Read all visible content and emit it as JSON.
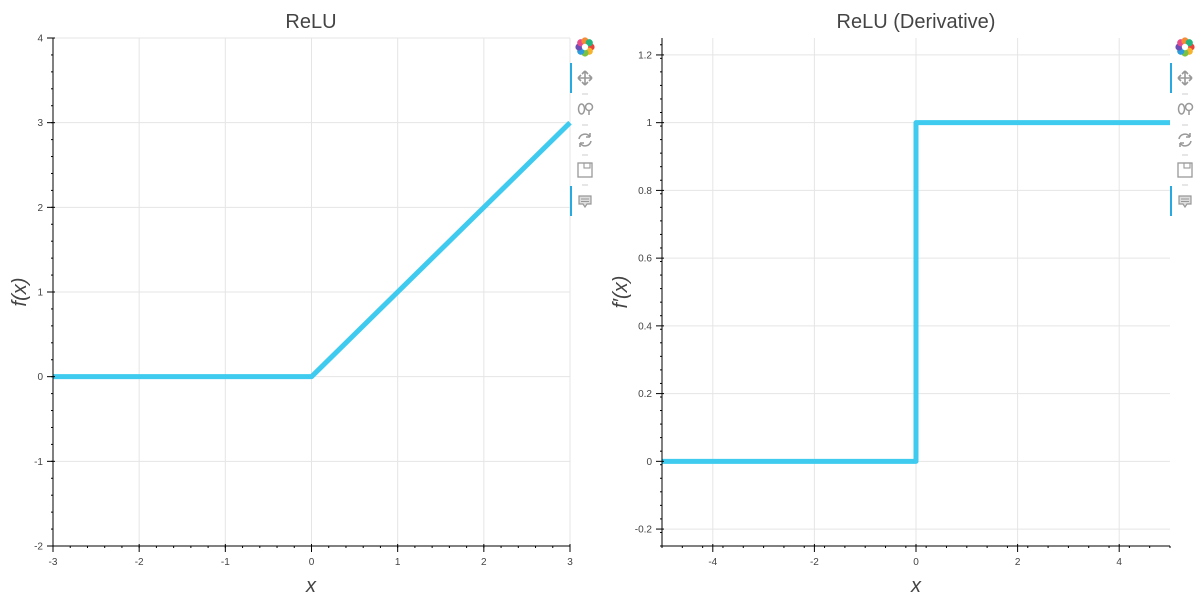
{
  "chart_data": [
    {
      "type": "line",
      "title": "ReLU",
      "xlabel": "x",
      "ylabel": "f(x)",
      "xlim": [
        -3,
        3
      ],
      "ylim": [
        -2,
        4
      ],
      "x_ticks": [
        -3,
        -2,
        -1,
        0,
        1,
        2,
        3
      ],
      "y_ticks": [
        -2,
        -1,
        0,
        1,
        2,
        3,
        4
      ],
      "grid": true,
      "series": [
        {
          "x": [
            -3,
            0,
            3
          ],
          "y": [
            0,
            0,
            3
          ]
        }
      ]
    },
    {
      "type": "line",
      "title": "ReLU (Derivative)",
      "xlabel": "x",
      "ylabel": "f′(x)",
      "xlim": [
        -5,
        5
      ],
      "ylim": [
        -0.25,
        1.25
      ],
      "x_ticks": [
        -4,
        -2,
        0,
        2,
        4
      ],
      "y_ticks": [
        -0.2,
        0,
        0.2,
        0.4,
        0.6,
        0.8,
        1,
        1.2
      ],
      "grid": true,
      "series": [
        {
          "x": [
            -5,
            0,
            0,
            5
          ],
          "y": [
            0,
            0,
            1,
            1
          ]
        }
      ]
    }
  ],
  "style": {
    "line_color": "#3ecbef",
    "toolbar_active_color": "#26aae1",
    "toolbar_icon_color": "#999999"
  },
  "toolbar": {
    "icons": [
      "bokeh-logo-icon",
      "pan-icon",
      "wheel-zoom-icon",
      "reset-icon",
      "save-icon",
      "hover-icon"
    ]
  }
}
